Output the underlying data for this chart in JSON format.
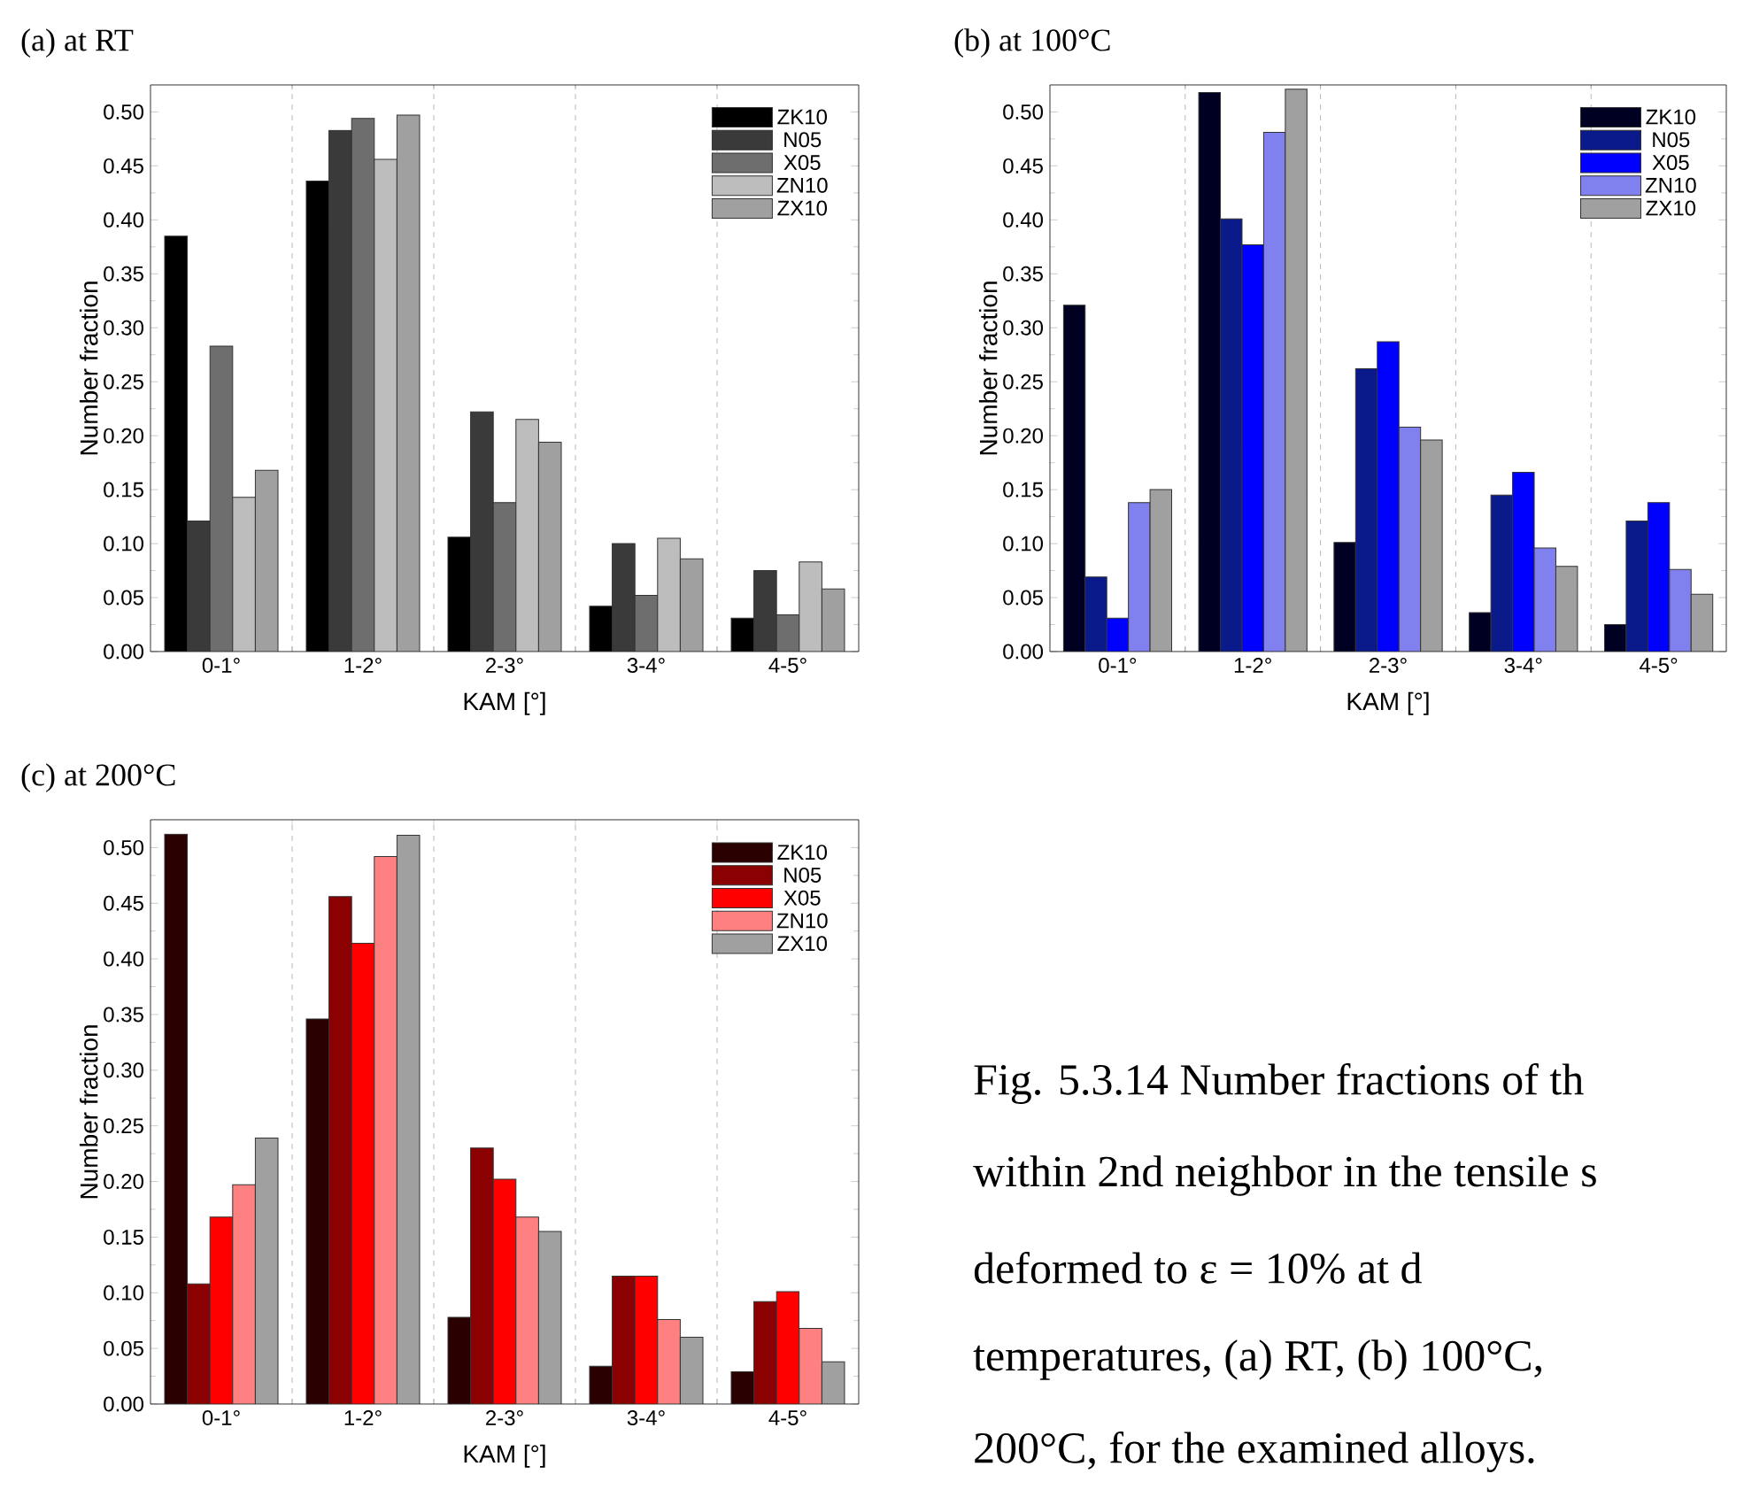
{
  "chart_data": [
    {
      "type": "bar",
      "title": "(a) at RT",
      "xlabel": "KAM [°]",
      "ylabel": "Number fraction",
      "categories": [
        "0-1°",
        "1-2°",
        "2-3°",
        "3-4°",
        "4-5°"
      ],
      "series": [
        {
          "name": "ZK10",
          "color": "#000000",
          "values": [
            0.385,
            0.436,
            0.106,
            0.042,
            0.031
          ]
        },
        {
          "name": "N05",
          "color": "#3a3a3a",
          "values": [
            0.121,
            0.483,
            0.222,
            0.1,
            0.075
          ]
        },
        {
          "name": "X05",
          "color": "#6e6e6e",
          "values": [
            0.283,
            0.494,
            0.138,
            0.052,
            0.034
          ]
        },
        {
          "name": "ZN10",
          "color": "#bdbdbd",
          "values": [
            0.143,
            0.456,
            0.215,
            0.105,
            0.083
          ]
        },
        {
          "name": "ZX10",
          "color": "#a0a0a0",
          "values": [
            0.168,
            0.497,
            0.194,
            0.086,
            0.058
          ]
        }
      ],
      "ylim": [
        0,
        0.525
      ],
      "yticks": [
        {
          "value": 0,
          "label": "0.00"
        },
        {
          "value": 0.05,
          "label": "0.05"
        },
        {
          "value": 0.1,
          "label": "0.10"
        },
        {
          "value": 0.15,
          "label": "0.15"
        },
        {
          "value": 0.2,
          "label": "0.20"
        },
        {
          "value": 0.25,
          "label": "0.25"
        },
        {
          "value": 0.3,
          "label": "0.30"
        },
        {
          "value": 0.35,
          "label": "0.35"
        },
        {
          "value": 0.4,
          "label": "0.40"
        },
        {
          "value": 0.45,
          "label": "0.45"
        },
        {
          "value": 0.5,
          "label": "0.50"
        }
      ],
      "grid": "x",
      "legend": "top right"
    },
    {
      "type": "bar",
      "title": "(b) at 100°C",
      "xlabel": "KAM [°]",
      "ylabel": "Number fraction",
      "categories": [
        "0-1°",
        "1-2°",
        "2-3°",
        "3-4°",
        "4-5°"
      ],
      "series": [
        {
          "name": "ZK10",
          "color": "#000022",
          "values": [
            0.321,
            0.518,
            0.101,
            0.036,
            0.025
          ]
        },
        {
          "name": "N05",
          "color": "#0a1a8a",
          "values": [
            0.069,
            0.401,
            0.262,
            0.145,
            0.121
          ]
        },
        {
          "name": "X05",
          "color": "#0000ff",
          "values": [
            0.031,
            0.377,
            0.287,
            0.166,
            0.138
          ]
        },
        {
          "name": "ZN10",
          "color": "#8080ee",
          "values": [
            0.138,
            0.481,
            0.208,
            0.096,
            0.076
          ]
        },
        {
          "name": "ZX10",
          "color": "#a0a0a0",
          "values": [
            0.15,
            0.521,
            0.196,
            0.079,
            0.053
          ]
        }
      ],
      "ylim": [
        0,
        0.525
      ],
      "yticks": [
        {
          "value": 0,
          "label": "0.00"
        },
        {
          "value": 0.05,
          "label": "0.05"
        },
        {
          "value": 0.1,
          "label": "0.10"
        },
        {
          "value": 0.15,
          "label": "0.15"
        },
        {
          "value": 0.2,
          "label": "0.20"
        },
        {
          "value": 0.25,
          "label": "0.25"
        },
        {
          "value": 0.3,
          "label": "0.30"
        },
        {
          "value": 0.35,
          "label": "0.35"
        },
        {
          "value": 0.4,
          "label": "0.40"
        },
        {
          "value": 0.45,
          "label": "0.45"
        },
        {
          "value": 0.5,
          "label": "0.50"
        }
      ],
      "grid": "x",
      "legend": "top right"
    },
    {
      "type": "bar",
      "title": "(c) at 200°C",
      "xlabel": "KAM [°]",
      "ylabel": "Number fraction",
      "categories": [
        "0-1°",
        "1-2°",
        "2-3°",
        "3-4°",
        "4-5°"
      ],
      "series": [
        {
          "name": "ZK10",
          "color": "#2a0000",
          "values": [
            0.512,
            0.346,
            0.078,
            0.034,
            0.029
          ]
        },
        {
          "name": "N05",
          "color": "#8b0000",
          "values": [
            0.108,
            0.456,
            0.23,
            0.115,
            0.092
          ]
        },
        {
          "name": "X05",
          "color": "#ff0000",
          "values": [
            0.168,
            0.414,
            0.202,
            0.115,
            0.101
          ]
        },
        {
          "name": "ZN10",
          "color": "#ff8080",
          "values": [
            0.197,
            0.492,
            0.168,
            0.076,
            0.068
          ]
        },
        {
          "name": "ZX10",
          "color": "#a0a0a0",
          "values": [
            0.239,
            0.511,
            0.155,
            0.06,
            0.038
          ]
        }
      ],
      "ylim": [
        0,
        0.525
      ],
      "yticks": [
        {
          "value": 0,
          "label": "0.00"
        },
        {
          "value": 0.05,
          "label": "0.05"
        },
        {
          "value": 0.1,
          "label": "0.10"
        },
        {
          "value": 0.15,
          "label": "0.15"
        },
        {
          "value": 0.2,
          "label": "0.20"
        },
        {
          "value": 0.25,
          "label": "0.25"
        },
        {
          "value": 0.3,
          "label": "0.30"
        },
        {
          "value": 0.35,
          "label": "0.35"
        },
        {
          "value": 0.4,
          "label": "0.40"
        },
        {
          "value": 0.45,
          "label": "0.45"
        },
        {
          "value": 0.5,
          "label": "0.50"
        }
      ],
      "grid": "x",
      "legend": "top right",
      "annotations": [
        "Fig. 5.3.14 Number fractions of th",
        "within 2nd neighbor in the tensile s",
        "deformed to ε = 10% at d",
        "temperatures, (a) RT, (b) 100°C,",
        "200°C, for the examined alloys."
      ]
    }
  ]
}
